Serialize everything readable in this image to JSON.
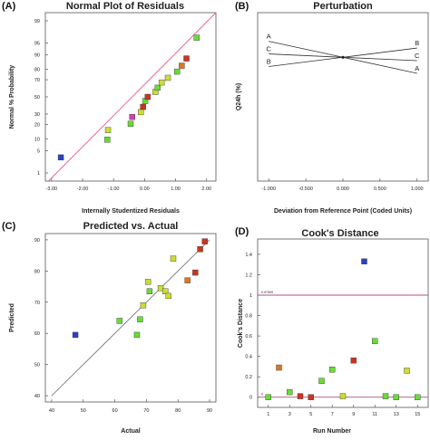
{
  "chart_data": [
    {
      "panel_label": "(A)",
      "type": "scatter",
      "title": "Normal Plot of Residuals",
      "xlabel": "Internally Studentized Residuals",
      "ylabel": "Normal % Probability",
      "xlim": [
        -3.2,
        2.3
      ],
      "xticks": [
        "-3.00",
        "-2.00",
        "-1.00",
        "0.00",
        "1.00",
        "2.00"
      ],
      "xtick_values": [
        -3,
        -2,
        -1,
        0,
        1,
        2
      ],
      "yticks": [
        "1",
        "5",
        "10",
        "20",
        "30",
        "50",
        "70",
        "80",
        "90",
        "95",
        "99"
      ],
      "y_scale": "probability",
      "reference_line": {
        "from": [
          -3.1,
          0.5
        ],
        "to": [
          2.3,
          99.5
        ],
        "color": "#e06090"
      },
      "points": [
        {
          "x": -2.7,
          "y": 3.2,
          "color": "#2a3fc8"
        },
        {
          "x": -1.2,
          "y": 9.5,
          "color": "#66dd33"
        },
        {
          "x": -1.18,
          "y": 15.5,
          "color": "#ccdd33"
        },
        {
          "x": -0.45,
          "y": 20.5,
          "color": "#66dd33"
        },
        {
          "x": -0.4,
          "y": 27,
          "color": "#cc44aa"
        },
        {
          "x": -0.12,
          "y": 32,
          "color": "#ccdd33"
        },
        {
          "x": -0.05,
          "y": 38,
          "color": "#cc3322"
        },
        {
          "x": 0.02,
          "y": 45,
          "color": "#66dd33"
        },
        {
          "x": 0.1,
          "y": 50,
          "color": "#cc3322"
        },
        {
          "x": 0.35,
          "y": 56,
          "color": "#ccdd33"
        },
        {
          "x": 0.42,
          "y": 61,
          "color": "#66dd33"
        },
        {
          "x": 0.55,
          "y": 67,
          "color": "#ccdd33"
        },
        {
          "x": 0.75,
          "y": 72,
          "color": "#ccdd33"
        },
        {
          "x": 1.05,
          "y": 78,
          "color": "#66dd33"
        },
        {
          "x": 1.2,
          "y": 83,
          "color": "#dd7722"
        },
        {
          "x": 1.35,
          "y": 88,
          "color": "#cc3322"
        },
        {
          "x": 1.68,
          "y": 96.5,
          "color": "#66dd33"
        }
      ]
    },
    {
      "panel_label": "(B)",
      "type": "line",
      "title": "Perturbation",
      "xlabel": "Deviation from Reference Point (Coded Units)",
      "ylabel": "Q24h (%)",
      "xlim": [
        -1.0,
        1.0
      ],
      "ylim": [
        0,
        100
      ],
      "xticks": [
        "-1.000",
        "-0.500",
        "0.000",
        "0.500",
        "1.000"
      ],
      "xtick_values": [
        -1.0,
        -0.5,
        0.0,
        0.5,
        1.0
      ],
      "series": [
        {
          "name": "A",
          "x": [
            -1.0,
            0.0,
            1.0
          ],
          "y": [
            83,
            73.5,
            64
          ]
        },
        {
          "name": "B",
          "x": [
            -1.0,
            0.0,
            1.0
          ],
          "y": [
            68,
            73.5,
            79
          ]
        },
        {
          "name": "C",
          "x": [
            -1.0,
            0.0,
            1.0
          ],
          "y": [
            75.5,
            73.5,
            71.5
          ]
        }
      ],
      "line_color": "#333333"
    },
    {
      "panel_label": "(C)",
      "type": "scatter",
      "title": "Predicted vs. Actual",
      "xlabel": "Actual",
      "ylabel": "Predicted",
      "xlim": [
        38,
        92
      ],
      "ylim": [
        38,
        92
      ],
      "xticks": [
        "40",
        "50",
        "60",
        "70",
        "80",
        "90"
      ],
      "xtick_values": [
        40,
        50,
        60,
        70,
        80,
        90
      ],
      "yticks": [
        "40",
        "50",
        "60",
        "70",
        "80",
        "90"
      ],
      "ytick_values": [
        40,
        50,
        60,
        70,
        80,
        90
      ],
      "reference_line": {
        "from": [
          40,
          40
        ],
        "to": [
          90,
          90
        ],
        "color": "#666666"
      },
      "points": [
        {
          "x": 47.5,
          "y": 59.5,
          "color": "#2a3fc8"
        },
        {
          "x": 61.5,
          "y": 64.0,
          "color": "#66dd33"
        },
        {
          "x": 67.0,
          "y": 59.5,
          "color": "#66dd33"
        },
        {
          "x": 68.0,
          "y": 64.5,
          "color": "#66dd33"
        },
        {
          "x": 69.0,
          "y": 69.0,
          "color": "#ccdd33"
        },
        {
          "x": 70.5,
          "y": 76.5,
          "color": "#ccdd33"
        },
        {
          "x": 71.0,
          "y": 73.5,
          "color": "#66dd33"
        },
        {
          "x": 74.5,
          "y": 74.5,
          "color": "#ccdd33"
        },
        {
          "x": 76.0,
          "y": 73.5,
          "color": "#ccdd33"
        },
        {
          "x": 77.0,
          "y": 72.0,
          "color": "#ccdd33"
        },
        {
          "x": 78.5,
          "y": 84.0,
          "color": "#ccdd33"
        },
        {
          "x": 83.0,
          "y": 77.0,
          "color": "#dd7722"
        },
        {
          "x": 85.5,
          "y": 79.5,
          "color": "#cc3322"
        },
        {
          "x": 87.0,
          "y": 87.0,
          "color": "#cc3322"
        },
        {
          "x": 88.5,
          "y": 89.5,
          "color": "#cc3322"
        }
      ]
    },
    {
      "panel_label": "(D)",
      "type": "scatter",
      "title": "Cook's Distance",
      "xlabel": "Run Number",
      "ylabel": "Cook's Distance",
      "xlim": [
        0,
        16
      ],
      "ylim": [
        -0.1,
        1.55
      ],
      "xticks": [
        "1",
        "3",
        "5",
        "7",
        "9",
        "11",
        "13",
        "15"
      ],
      "xtick_values": [
        1,
        3,
        5,
        7,
        9,
        11,
        13,
        15
      ],
      "yticks": [
        "0",
        "0.2",
        "0.4",
        "0.6",
        "0.8",
        "1",
        "1.2",
        "1.4"
      ],
      "ytick_values": [
        0,
        0.2,
        0.4,
        0.6,
        0.8,
        1.0,
        1.2,
        1.4
      ],
      "reference_lines": [
        {
          "y": 1.0,
          "label": "0.97509",
          "color": "#b0508a"
        },
        {
          "y": 0.0,
          "label": "0",
          "color": "#b0508a"
        }
      ],
      "points": [
        {
          "x": 1,
          "y": 0.0,
          "color": "#66dd33"
        },
        {
          "x": 2,
          "y": 0.29,
          "color": "#dd7722"
        },
        {
          "x": 3,
          "y": 0.05,
          "color": "#66dd33"
        },
        {
          "x": 4,
          "y": 0.01,
          "color": "#cc3322"
        },
        {
          "x": 5,
          "y": 0.0,
          "color": "#cc3322"
        },
        {
          "x": 6,
          "y": 0.16,
          "color": "#66dd33"
        },
        {
          "x": 7,
          "y": 0.27,
          "color": "#66dd33"
        },
        {
          "x": 8,
          "y": 0.01,
          "color": "#ccdd33"
        },
        {
          "x": 9,
          "y": 0.36,
          "color": "#cc3322"
        },
        {
          "x": 10,
          "y": 1.33,
          "color": "#2a3fc8"
        },
        {
          "x": 11,
          "y": 0.55,
          "color": "#66dd33"
        },
        {
          "x": 12,
          "y": 0.01,
          "color": "#66dd33"
        },
        {
          "x": 13,
          "y": 0.0,
          "color": "#66dd33"
        },
        {
          "x": 14,
          "y": 0.26,
          "color": "#ccdd33"
        },
        {
          "x": 15,
          "y": 0.0,
          "color": "#66dd33"
        }
      ]
    }
  ]
}
